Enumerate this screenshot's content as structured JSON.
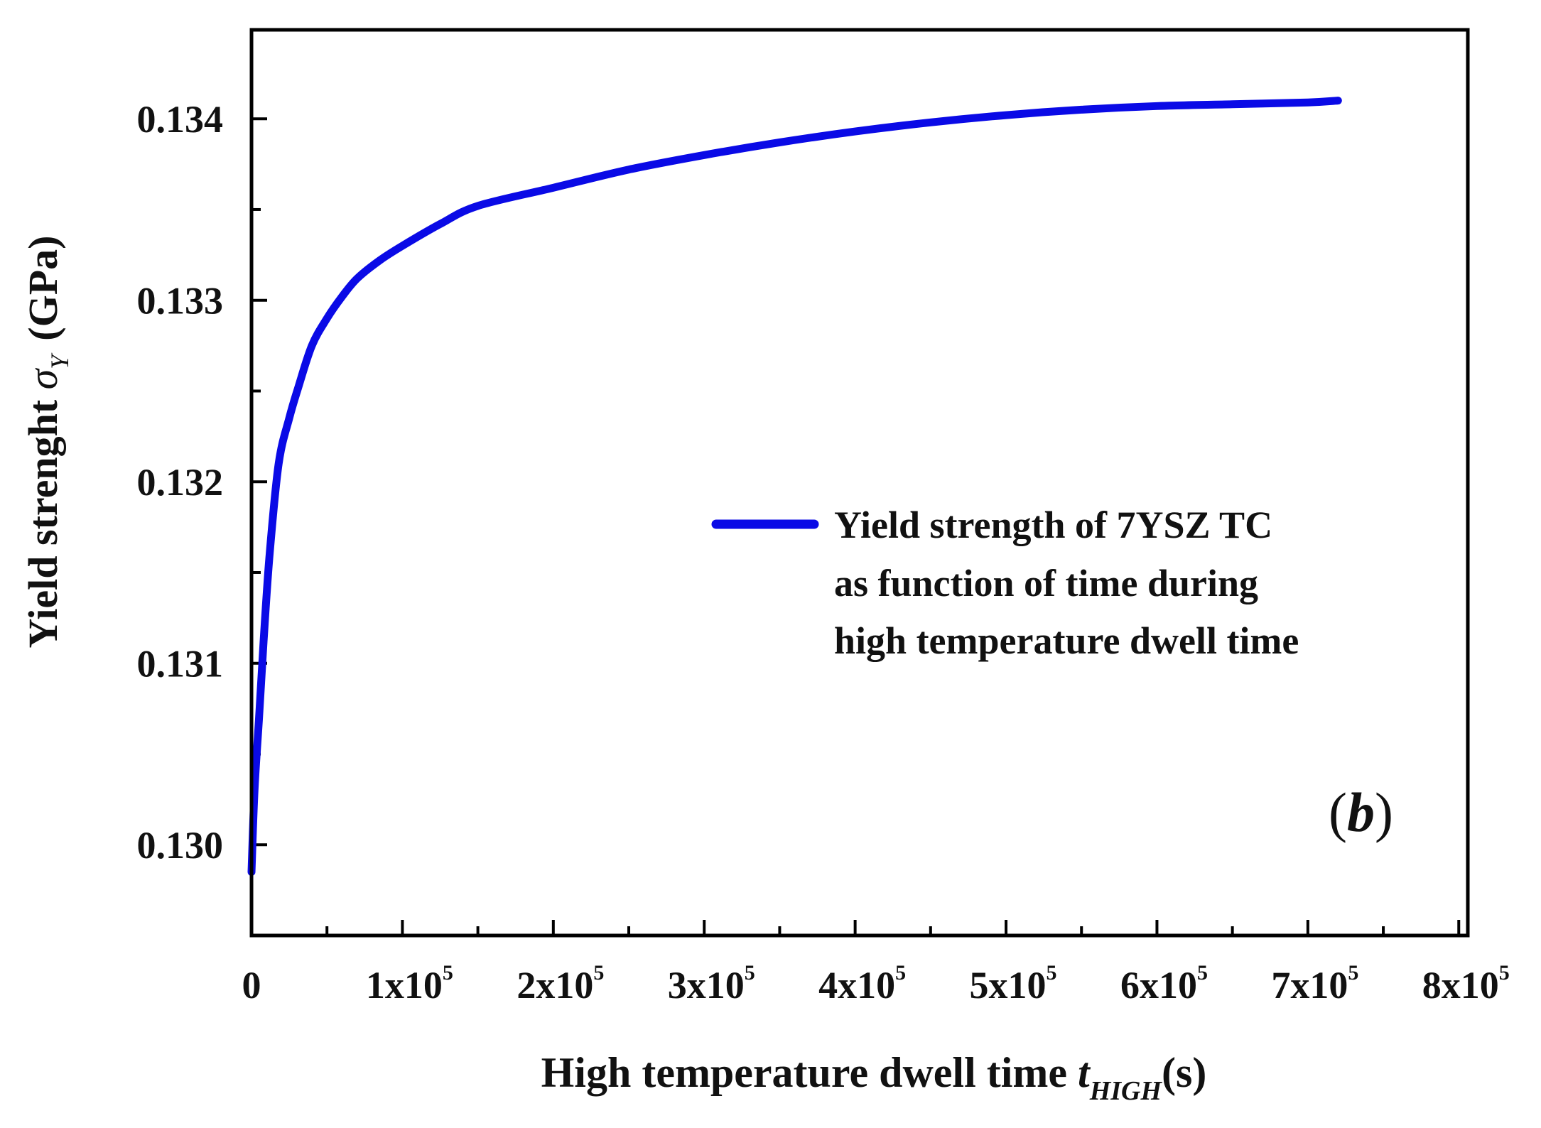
{
  "chart_data": {
    "type": "line",
    "title": "",
    "panel_label": "b",
    "xlabel": "High temperature dwell time ",
    "xlabel_symbol": "t",
    "xlabel_subscript": "HIGH",
    "xlabel_unit": "(s)",
    "ylabel": "Yield strenght ",
    "ylabel_symbol": "σ",
    "ylabel_subscript": "Y",
    "ylabel_unit": "(GPa)",
    "xlim": [
      0,
      806000
    ],
    "ylim": [
      0.1295,
      0.13449
    ],
    "x_ticks": [
      {
        "value": 0,
        "base": "0",
        "exp": ""
      },
      {
        "value": 100000,
        "base": "1x10",
        "exp": "5"
      },
      {
        "value": 200000,
        "base": "2x10",
        "exp": "5"
      },
      {
        "value": 300000,
        "base": "3x10",
        "exp": "5"
      },
      {
        "value": 400000,
        "base": "4x10",
        "exp": "5"
      },
      {
        "value": 500000,
        "base": "5x10",
        "exp": "5"
      },
      {
        "value": 600000,
        "base": "6x10",
        "exp": "5"
      },
      {
        "value": 700000,
        "base": "7x10",
        "exp": "5"
      },
      {
        "value": 800000,
        "base": "8x10",
        "exp": "5"
      }
    ],
    "y_ticks": [
      {
        "value": 0.13,
        "label": "0.130"
      },
      {
        "value": 0.131,
        "label": "0.131"
      },
      {
        "value": 0.132,
        "label": "0.132"
      },
      {
        "value": 0.133,
        "label": "0.133"
      },
      {
        "value": 0.134,
        "label": "0.134"
      }
    ],
    "grid": false,
    "legend_position": "center-right",
    "series": [
      {
        "name": "Yield strength of 7YSZ TC as function of time during high temperature dwell time",
        "legend_lines": [
          "Yield strength of 7YSZ TC",
          "as function of time during",
          "high temperature dwell time"
        ],
        "color": "#0a0ae6",
        "x": [
          0,
          2000,
          5000,
          8000,
          12000,
          18000,
          25000,
          31000,
          40000,
          50000,
          60000,
          70000,
          85000,
          100000,
          125000,
          150000,
          200000,
          250000,
          300000,
          350000,
          400000,
          450000,
          500000,
          550000,
          600000,
          650000,
          700000,
          720000
        ],
        "y": [
          0.12985,
          0.1303,
          0.1307,
          0.13112,
          0.1316,
          0.1321,
          0.13235,
          0.13252,
          0.13275,
          0.1329,
          0.13302,
          0.13312,
          0.13322,
          0.1333,
          0.13342,
          0.13352,
          0.13362,
          0.13372,
          0.1338,
          0.13387,
          0.13393,
          0.13398,
          0.13402,
          0.13405,
          0.13407,
          0.13408,
          0.13409,
          0.1341
        ]
      }
    ]
  }
}
